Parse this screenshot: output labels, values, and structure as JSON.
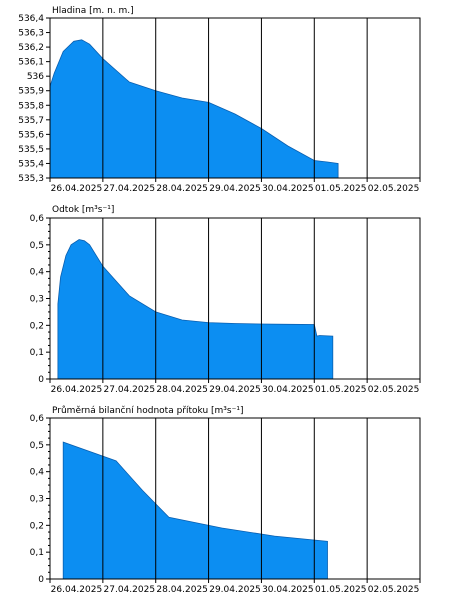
{
  "chart_data": [
    {
      "type": "area",
      "title": "Hladina [m. n. m.]",
      "ylim": [
        535.3,
        536.4
      ],
      "yticks": [
        "535,3",
        "535,4",
        "535,5",
        "535,6",
        "535,7",
        "535,8",
        "535,9",
        "536",
        "536,1",
        "536,2",
        "536,3",
        "536,4"
      ],
      "xticks": [
        "26.04.2025",
        "27.04.2025",
        "28.04.2025",
        "29.04.2025",
        "30.04.2025",
        "01.05.2025",
        "02.05.2025"
      ],
      "x": [
        0.0,
        0.08,
        0.25,
        0.45,
        0.6,
        0.75,
        1.0,
        1.5,
        2.0,
        2.5,
        3.0,
        3.5,
        4.0,
        4.5,
        5.0,
        5.25,
        5.45,
        5.45
      ],
      "y": [
        535.93,
        536.02,
        536.17,
        536.24,
        536.25,
        536.22,
        536.12,
        535.96,
        535.9,
        535.85,
        535.82,
        535.74,
        535.64,
        535.52,
        535.42,
        535.41,
        535.4,
        535.3
      ],
      "grid": true
    },
    {
      "type": "area",
      "title": "Odtok [m³s⁻¹]",
      "ylim": [
        0,
        0.6
      ],
      "yticks": [
        "0",
        "0,1",
        "0,2",
        "0,3",
        "0,4",
        "0,5",
        "0,6"
      ],
      "xticks": [
        "26.04.2025",
        "27.04.2025",
        "28.04.2025",
        "29.04.2025",
        "30.04.2025",
        "01.05.2025",
        "02.05.2025"
      ],
      "x": [
        0.15,
        0.2,
        0.3,
        0.4,
        0.55,
        0.65,
        0.75,
        1.0,
        1.5,
        2.0,
        2.5,
        3.0,
        3.5,
        4.0,
        4.5,
        5.0,
        5.05,
        5.1,
        5.35
      ],
      "y": [
        0.28,
        0.38,
        0.46,
        0.5,
        0.52,
        0.515,
        0.5,
        0.42,
        0.31,
        0.25,
        0.22,
        0.21,
        0.207,
        0.205,
        0.204,
        0.203,
        0.16,
        0.162,
        0.16
      ],
      "grid": true
    },
    {
      "type": "area",
      "title": "Průměrná bilanční hodnota přítoku   [m³s⁻¹]",
      "ylim": [
        0,
        0.6
      ],
      "yticks": [
        "0",
        "0,1",
        "0,2",
        "0,3",
        "0,4",
        "0,5",
        "0,6"
      ],
      "xticks": [
        "26.04.2025",
        "27.04.2025",
        "28.04.2025",
        "29.04.2025",
        "30.04.2025",
        "01.05.2025",
        "02.05.2025"
      ],
      "x": [
        0.25,
        1.25,
        1.75,
        2.25,
        3.25,
        4.25,
        5.25
      ],
      "y": [
        0.51,
        0.44,
        0.33,
        0.23,
        0.19,
        0.16,
        0.14
      ],
      "grid": true
    }
  ],
  "colors": {
    "fill": "#0c8ef2",
    "grid": "#000000",
    "axis": "#000000"
  }
}
